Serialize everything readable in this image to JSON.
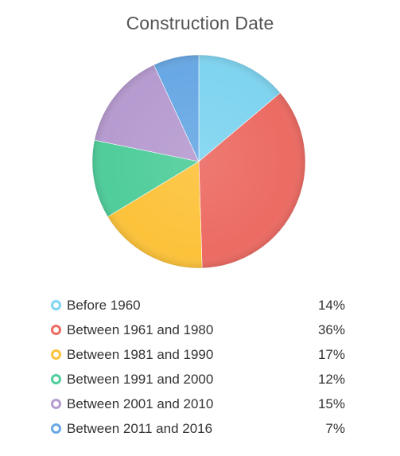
{
  "chart_data": {
    "type": "pie",
    "title": "Construction Date",
    "categories": [
      "Before 1960",
      "Between 1961 and 1980",
      "Between 1981 and 1990",
      "Between 1991 and 2000",
      "Between 2001 and 2010",
      "Between 2011 and 2016"
    ],
    "values": [
      14,
      36,
      17,
      12,
      15,
      7
    ],
    "value_labels": [
      "14%",
      "36%",
      "17%",
      "12%",
      "15%",
      "7%"
    ],
    "colors": [
      "#7fd4f0",
      "#ec6b63",
      "#fcc23a",
      "#4fcd9a",
      "#b69bd0",
      "#68a8e4"
    ],
    "start_angle_deg": 0,
    "direction": "clockwise",
    "legend_position": "bottom"
  }
}
